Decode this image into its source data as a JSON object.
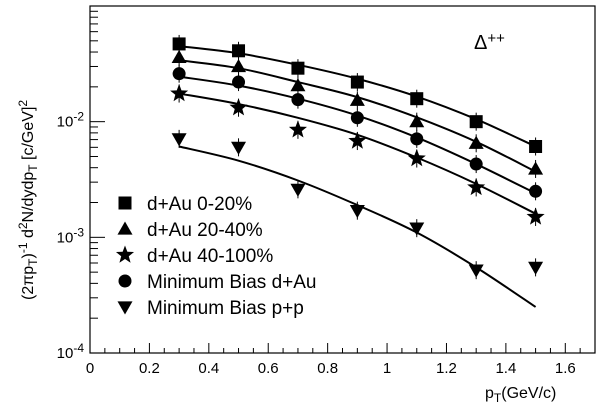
{
  "chart_data": {
    "type": "scatter",
    "xlabel": "p_T(GeV/c)",
    "ylabel": "(2πp_T)^-1 d^2N/dydp_T [c/GeV]^2",
    "annotation": "Δ^{++}",
    "xlim": [
      0,
      1.7
    ],
    "ylim": [
      0.0001,
      0.1
    ],
    "yscale": "log",
    "xticks": [
      "0",
      "0.2",
      "0.4",
      "0.6",
      "0.8",
      "1",
      "1.2",
      "1.4",
      "1.6"
    ],
    "yticks": [
      {
        "value": 0.0001,
        "base": "10",
        "exp": "-4"
      },
      {
        "value": 0.001,
        "base": "10",
        "exp": "-3"
      },
      {
        "value": 0.01,
        "base": "10",
        "exp": "-2"
      }
    ],
    "legend_position": "bottom-left",
    "series": [
      {
        "name": "d+Au 0-20%",
        "marker": "square",
        "x": [
          0.3,
          0.5,
          0.7,
          0.9,
          1.1,
          1.3,
          1.5
        ],
        "y": [
          0.047,
          0.041,
          0.029,
          0.022,
          0.0158,
          0.01,
          0.0061
        ],
        "fit": [
          [
            0.3,
            0.045
          ],
          [
            0.5,
            0.039
          ],
          [
            0.7,
            0.031
          ],
          [
            0.9,
            0.0235
          ],
          [
            1.1,
            0.0165
          ],
          [
            1.3,
            0.0105
          ],
          [
            1.5,
            0.0061
          ]
        ]
      },
      {
        "name": "d+Au 20-40%",
        "marker": "triangle-up",
        "x": [
          0.3,
          0.5,
          0.7,
          0.9,
          1.1,
          1.3,
          1.5
        ],
        "y": [
          0.036,
          0.03,
          0.0205,
          0.0153,
          0.01,
          0.0065,
          0.0039
        ],
        "fit": [
          [
            0.3,
            0.034
          ],
          [
            0.5,
            0.029
          ],
          [
            0.7,
            0.022
          ],
          [
            0.9,
            0.0163
          ],
          [
            1.1,
            0.0109
          ],
          [
            1.3,
            0.0067
          ],
          [
            1.5,
            0.0037
          ]
        ]
      },
      {
        "name": "d+Au 40-100%",
        "marker": "star",
        "x": [
          0.3,
          0.5,
          0.7,
          0.9,
          1.1,
          1.3,
          1.5
        ],
        "y": [
          0.0175,
          0.0132,
          0.0085,
          0.0068,
          0.0048,
          0.0027,
          0.0015
        ],
        "fit": [
          [
            0.3,
            0.0175
          ],
          [
            0.5,
            0.0142
          ],
          [
            0.7,
            0.0108
          ],
          [
            0.9,
            0.0077
          ],
          [
            1.1,
            0.0049
          ],
          [
            1.3,
            0.0029
          ],
          [
            1.5,
            0.0016
          ]
        ]
      },
      {
        "name": "Minimum Bias d+Au",
        "marker": "circle",
        "x": [
          0.3,
          0.5,
          0.7,
          0.9,
          1.1,
          1.3,
          1.5
        ],
        "y": [
          0.026,
          0.022,
          0.0155,
          0.0108,
          0.0071,
          0.0043,
          0.0025
        ],
        "fit": [
          [
            0.3,
            0.0245
          ],
          [
            0.5,
            0.0205
          ],
          [
            0.7,
            0.0158
          ],
          [
            0.9,
            0.0113
          ],
          [
            1.1,
            0.0073
          ],
          [
            1.3,
            0.0043
          ],
          [
            1.5,
            0.0024
          ]
        ]
      },
      {
        "name": "Minimum Bias p+p",
        "marker": "triangle-down",
        "x": [
          0.3,
          0.5,
          0.7,
          0.9,
          1.1,
          1.3,
          1.5
        ],
        "y": [
          0.0071,
          0.006,
          0.0026,
          0.0017,
          0.0012,
          0.00052,
          0.00055
        ],
        "fit": [
          [
            0.3,
            0.0061
          ],
          [
            0.5,
            0.0046
          ],
          [
            0.7,
            0.0031
          ],
          [
            0.9,
            0.0019
          ],
          [
            1.1,
            0.0011
          ],
          [
            1.3,
            0.00055
          ],
          [
            1.5,
            0.00025
          ]
        ]
      }
    ]
  }
}
